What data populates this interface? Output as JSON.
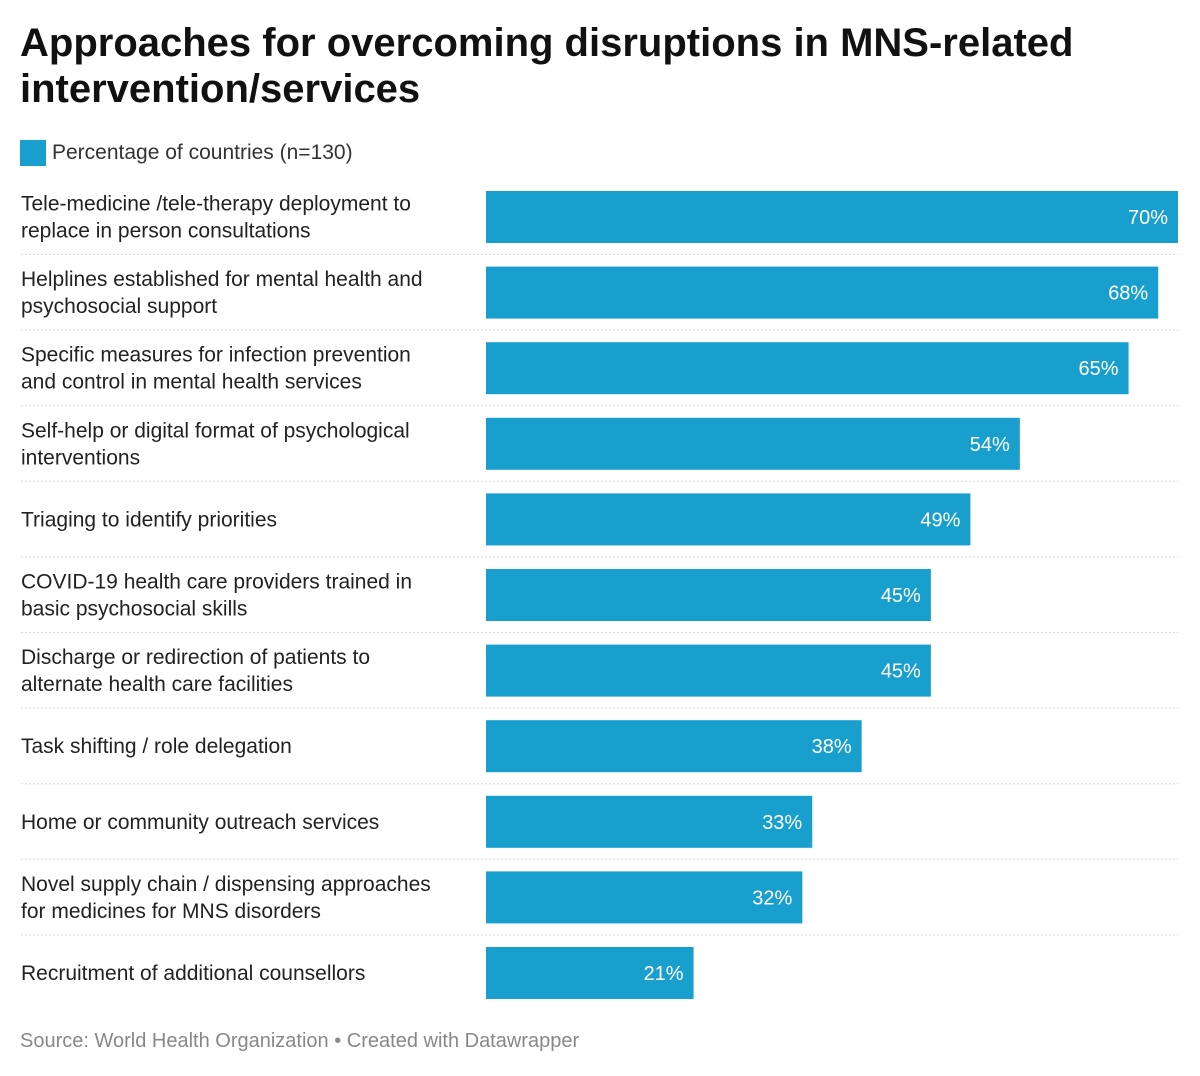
{
  "chart_data": {
    "type": "bar",
    "orientation": "horizontal",
    "title": "Approaches for overcoming disruptions in MNS-related intervention/services",
    "legend": {
      "label": "Percentage of countries (n=130)",
      "placement": "top-left"
    },
    "categories": [
      [
        "Tele-medicine /tele-therapy deployment to",
        "replace in person consultations"
      ],
      [
        "Helplines established for mental health and",
        "psychosocial support"
      ],
      [
        "Specific measures for infection prevention",
        "and control in mental health services"
      ],
      [
        "Self-help or digital format of psychological",
        "interventions"
      ],
      [
        "Triaging to identify priorities"
      ],
      [
        "COVID-19 health care providers trained in",
        "basic psychosocial skills"
      ],
      [
        "Discharge or redirection of patients to",
        "alternate health care facilities"
      ],
      [
        "Task shifting / role delegation"
      ],
      [
        "Home or community outreach services"
      ],
      [
        "Novel supply chain / dispensing approaches",
        "for medicines for MNS disorders"
      ],
      [
        "Recruitment of additional counsellors"
      ]
    ],
    "values": [
      70,
      68,
      65,
      54,
      49,
      45,
      45,
      38,
      33,
      32,
      21
    ],
    "value_labels": [
      "70%",
      "68%",
      "65%",
      "54%",
      "49%",
      "45%",
      "45%",
      "38%",
      "33%",
      "32%",
      "21%"
    ],
    "xlim": [
      0,
      70
    ],
    "bar_color": "#199fce",
    "separator_color": "#d8d8d8",
    "grid": false
  },
  "source": "Source: World Health Organization • Created with Datawrapper"
}
